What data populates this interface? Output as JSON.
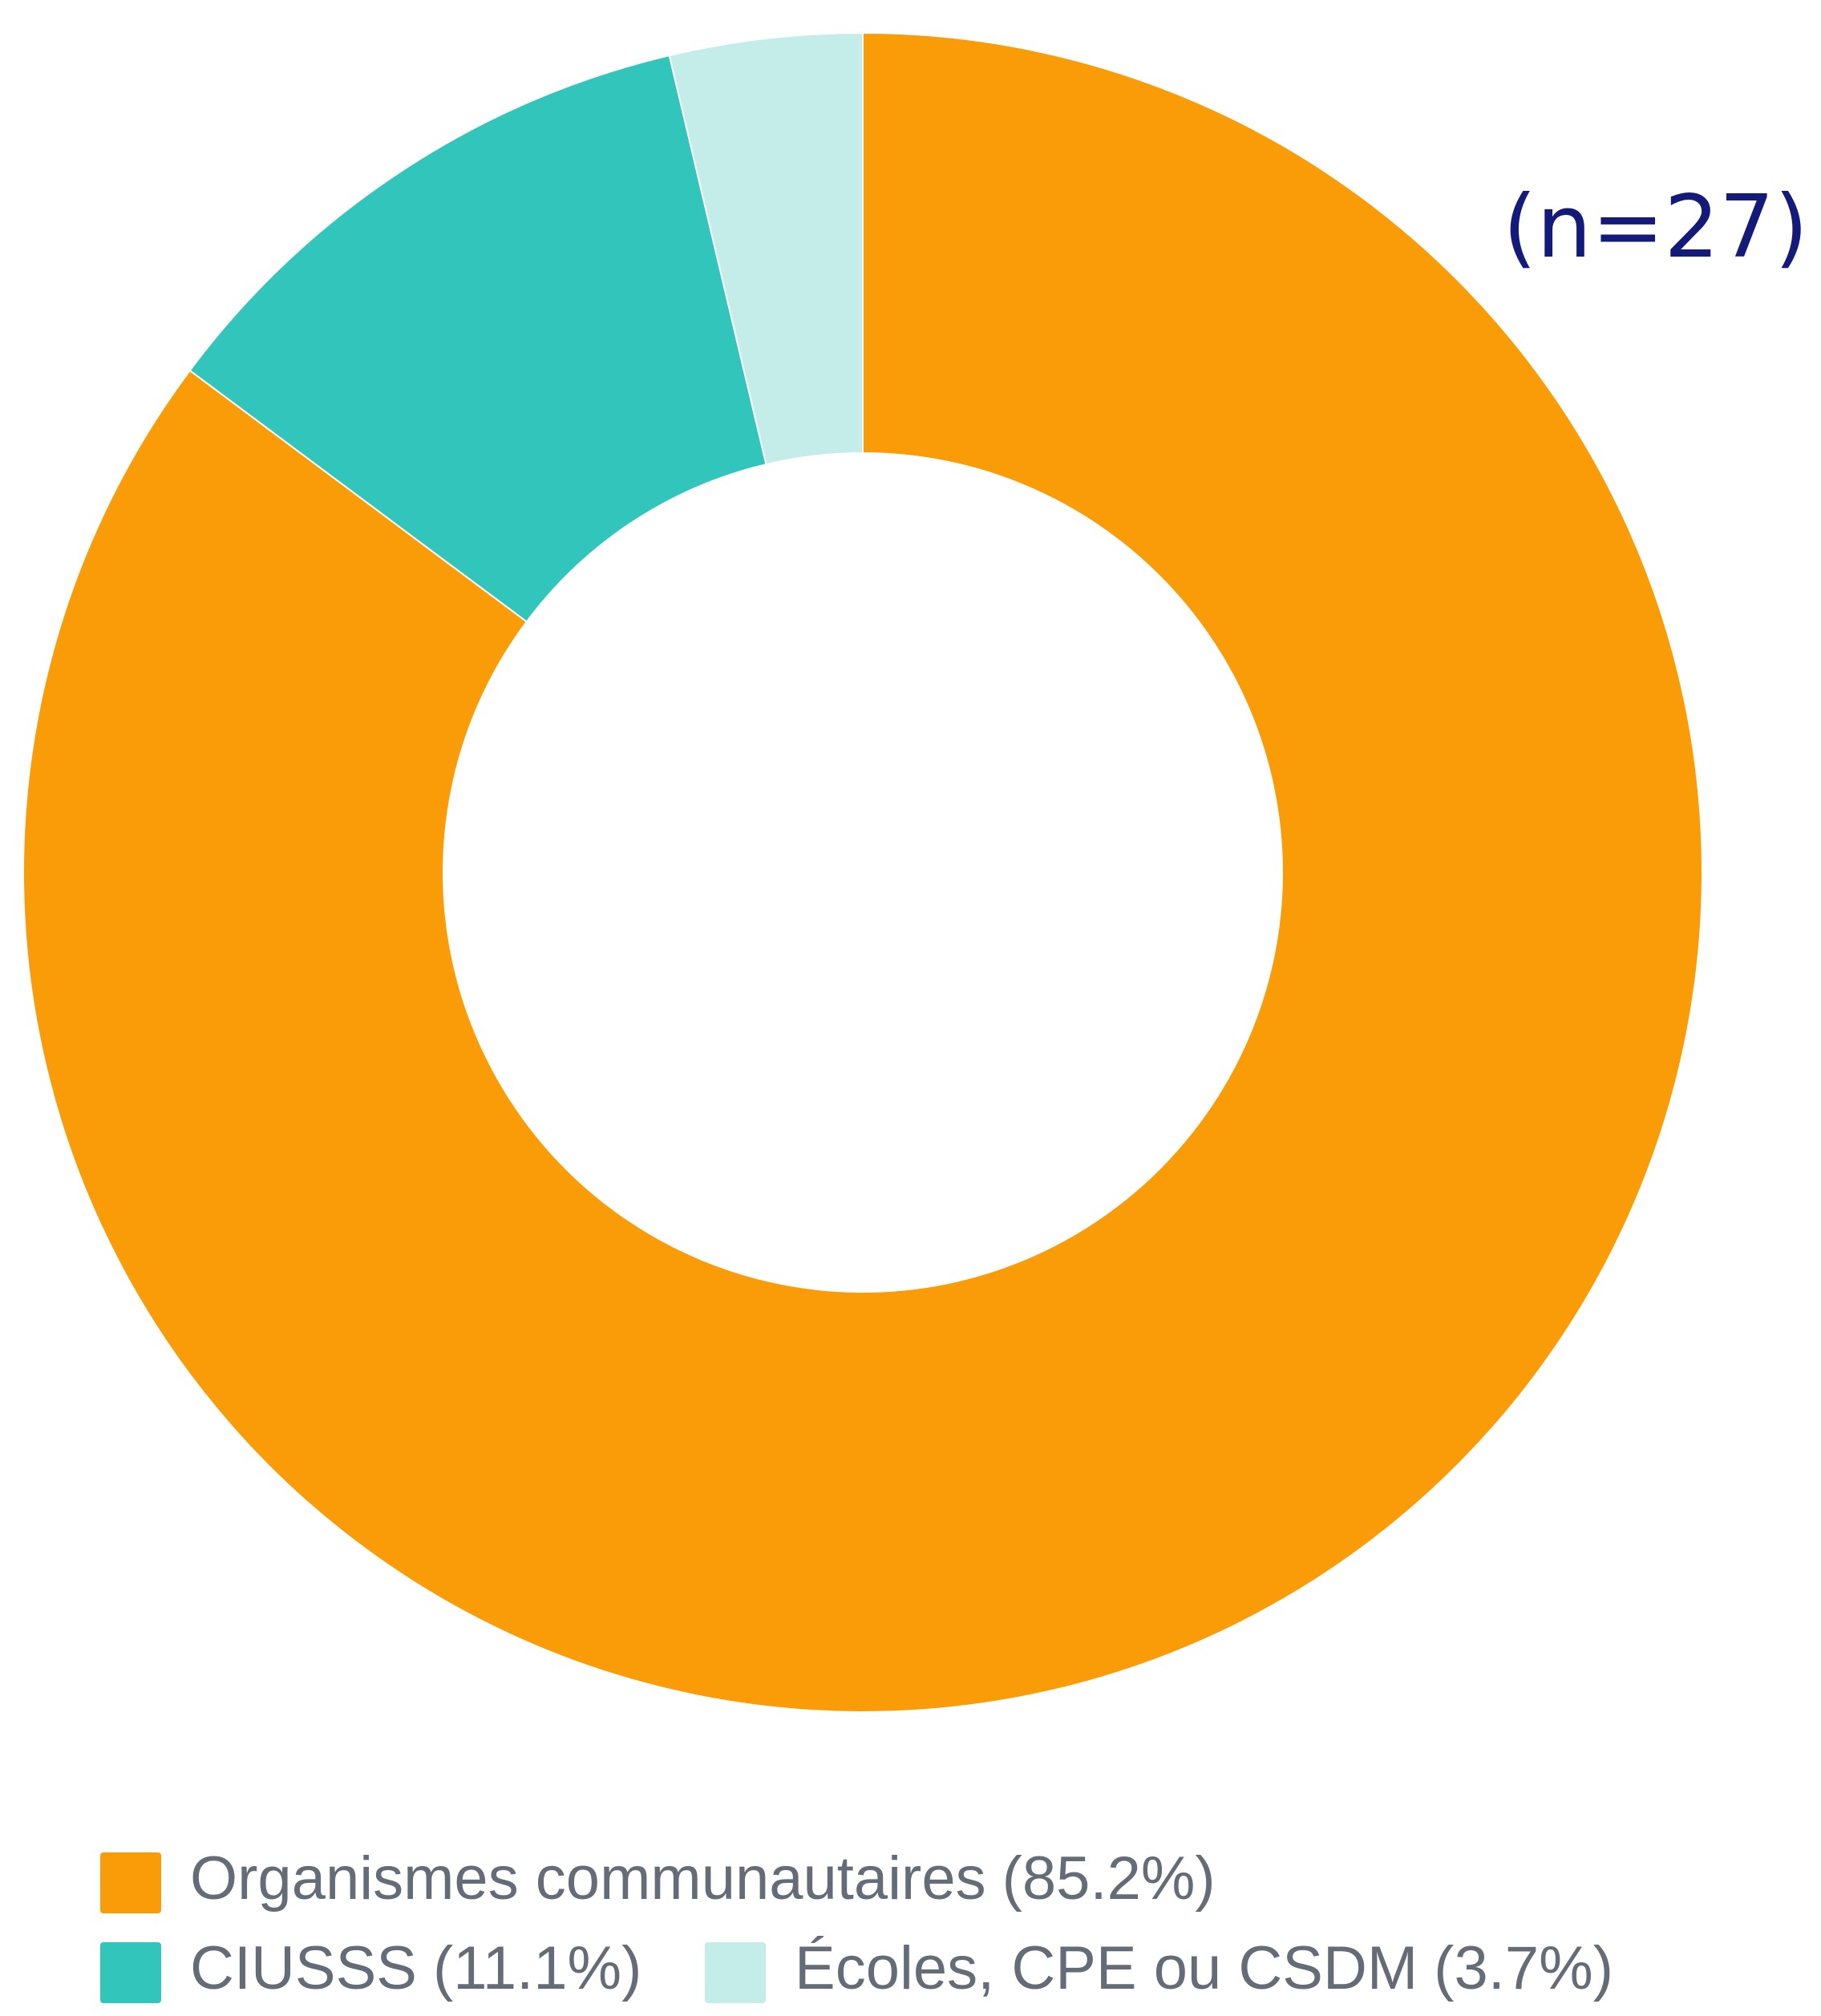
{
  "chart_data": {
    "type": "donut",
    "categories": [
      "Organismes communautaires",
      "CIUSSS",
      "Écoles, CPE ou CSDM"
    ],
    "values": [
      85.2,
      11.1,
      3.7
    ],
    "value_labels": [
      "(85.2%)",
      "(11.1%)",
      "(3.7%)"
    ],
    "colors": [
      "#f99c08",
      "#31c5bb",
      "#c4ece8"
    ],
    "annotation": "(n=27)"
  }
}
